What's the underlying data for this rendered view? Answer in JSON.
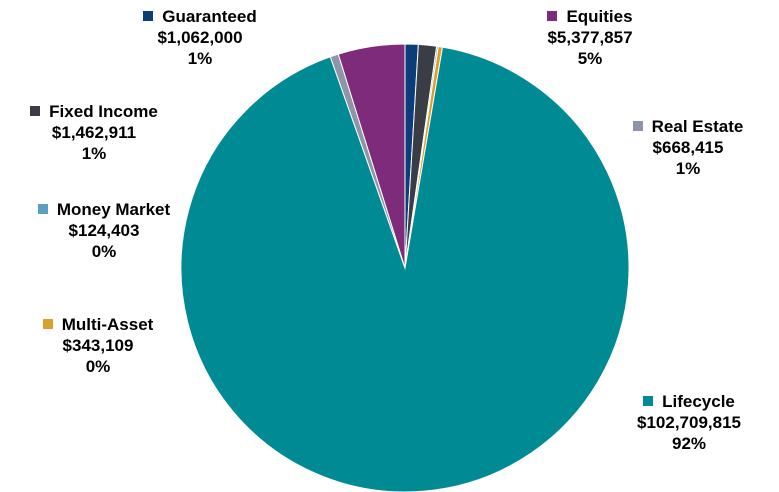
{
  "chart_data": {
    "type": "pie",
    "slices": [
      {
        "name": "Guaranteed",
        "value": 1062000,
        "value_label": "$1,062,000",
        "percent_label": "1%",
        "color": "#0b3d7a"
      },
      {
        "name": "Fixed Income",
        "value": 1462911,
        "value_label": "$1,462,911",
        "percent_label": "1%",
        "color": "#3a3d45"
      },
      {
        "name": "Money Market",
        "value": 124403,
        "value_label": "$124,403",
        "percent_label": "0%",
        "color": "#5b9fc4"
      },
      {
        "name": "Multi-Asset",
        "value": 343109,
        "value_label": "$343,109",
        "percent_label": "0%",
        "color": "#d9a12b"
      },
      {
        "name": "Lifecycle",
        "value": 102709815,
        "value_label": "$102,709,815",
        "percent_label": "92%",
        "color": "#008b94"
      },
      {
        "name": "Real Estate",
        "value": 668415,
        "value_label": "$668,415",
        "percent_label": "1%",
        "color": "#8f95a8"
      },
      {
        "name": "Equities",
        "value": 5377857,
        "value_label": "$5,377,857",
        "percent_label": "5%",
        "color": "#7e2b7c"
      }
    ],
    "legend": "labels-around-pie"
  }
}
